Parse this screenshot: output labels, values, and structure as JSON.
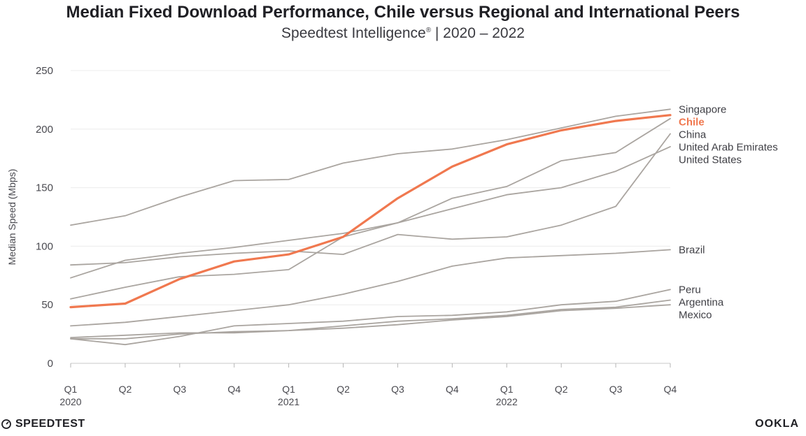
{
  "header": {
    "title": "Median Fixed Download Performance, Chile versus Regional and International Peers",
    "subtitle": "Speedtest Intelligence",
    "subtitle_mark": "®",
    "subtitle_period": " | 2020 – 2022"
  },
  "footer": {
    "left_logo": "SPEEDTEST",
    "right_logo": "OOKLA"
  },
  "chart_data": {
    "type": "line",
    "title": "Median Fixed Download Performance, Chile versus Regional and International Peers",
    "subtitle": "Speedtest Intelligence® | 2020 – 2022",
    "xlabel": "",
    "ylabel": "Median Speed (Mbps)",
    "ylim": [
      0,
      250
    ],
    "yticks": [
      0,
      50,
      100,
      150,
      200,
      250
    ],
    "categories": [
      "Q1",
      "Q2",
      "Q3",
      "Q4",
      "Q1",
      "Q2",
      "Q3",
      "Q4",
      "Q1",
      "Q2",
      "Q3",
      "Q4"
    ],
    "year_labels": [
      {
        "index": 0,
        "label": "2020"
      },
      {
        "index": 4,
        "label": "2021"
      },
      {
        "index": 8,
        "label": "2022"
      }
    ],
    "grid": true,
    "legend": "line-end labels, right",
    "colors": {
      "highlight": "#f0784f",
      "peer": "#aaa5a0",
      "grid": "#ececec",
      "axis_text": "#4a4a50"
    },
    "series": [
      {
        "name": "Singapore",
        "values": [
          118,
          126,
          142,
          156,
          157,
          171,
          179,
          183,
          191,
          201,
          211,
          217
        ],
        "highlight": false
      },
      {
        "name": "Chile",
        "values": [
          48,
          51,
          72,
          87,
          93,
          108,
          141,
          168,
          187,
          199,
          207,
          212
        ],
        "highlight": true
      },
      {
        "name": "China",
        "values": [
          73,
          88,
          94,
          99,
          105,
          111,
          120,
          141,
          151,
          173,
          180,
          209
        ],
        "highlight": false
      },
      {
        "name": "United Arab Emirates",
        "values": [
          84,
          86,
          91,
          94,
          96,
          93,
          110,
          106,
          108,
          118,
          134,
          196
        ],
        "highlight": false
      },
      {
        "name": "United States",
        "values": [
          55,
          65,
          74,
          76,
          80,
          108,
          120,
          132,
          144,
          150,
          164,
          185
        ],
        "highlight": false
      },
      {
        "name": "Brazil",
        "values": [
          32,
          35,
          40,
          45,
          50,
          59,
          70,
          83,
          90,
          92,
          94,
          97
        ],
        "highlight": false
      },
      {
        "name": "Peru",
        "values": [
          21,
          16,
          23,
          32,
          34,
          36,
          40,
          41,
          44,
          50,
          53,
          63
        ],
        "highlight": false
      },
      {
        "name": "Argentina",
        "values": [
          22,
          24,
          26,
          26,
          28,
          32,
          36,
          38,
          41,
          46,
          48,
          54
        ],
        "highlight": false
      },
      {
        "name": "Mexico",
        "values": [
          21,
          21,
          25,
          27,
          28,
          30,
          33,
          37,
          40,
          45,
          47,
          50
        ],
        "highlight": false
      }
    ]
  }
}
